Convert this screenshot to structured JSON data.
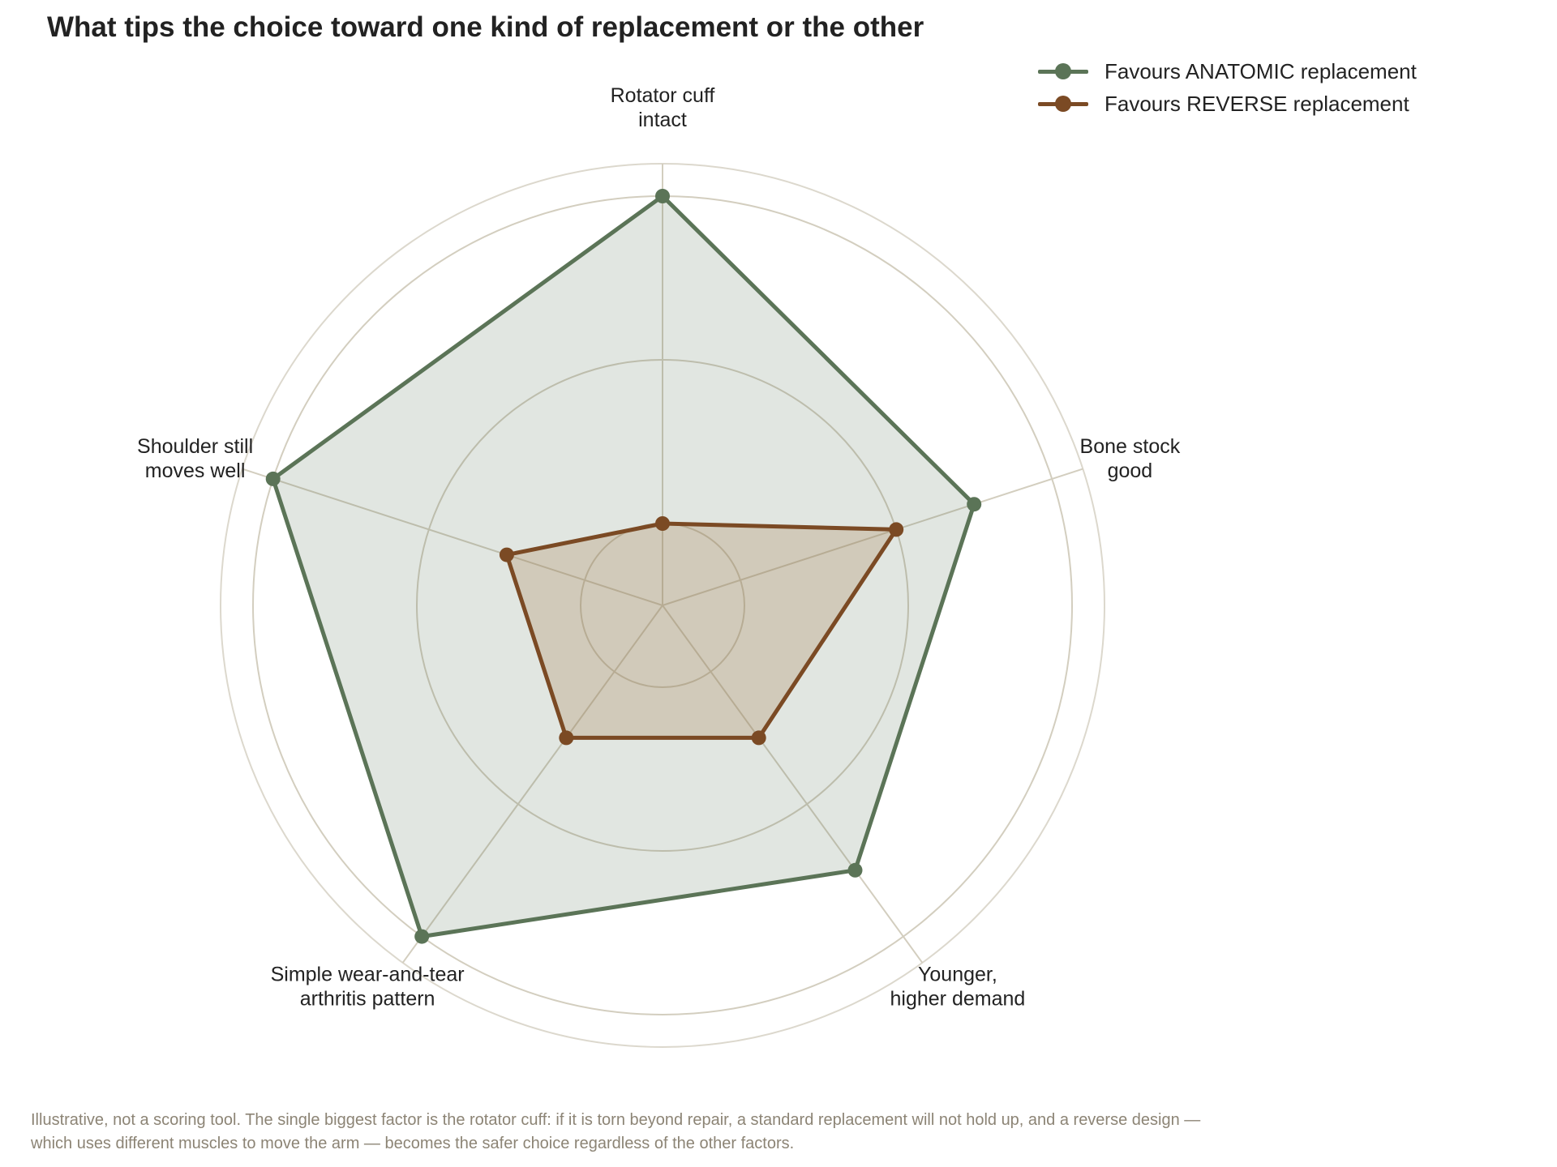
{
  "chart_data": {
    "type": "radar",
    "title": "What tips the choice toward one kind of replacement or the other",
    "axes": [
      [
        "Rotator cuff",
        "intact"
      ],
      [
        "Bone stock",
        "good"
      ],
      [
        "Younger,",
        "higher demand"
      ],
      [
        "Simple wear-and-tear",
        "arthritis pattern"
      ],
      [
        "Shoulder still",
        "moves well"
      ]
    ],
    "rmax": 5,
    "rings": [
      1,
      3,
      5
    ],
    "grid": true,
    "legend_position": "top-right",
    "series": [
      {
        "name": "Favours ANATOMIC replacement",
        "color": "#5b7457",
        "values": [
          5.0,
          4.0,
          4.0,
          5.0,
          5.0
        ]
      },
      {
        "name": "Favours REVERSE replacement",
        "color": "#7b4a24",
        "values": [
          1.0,
          3.0,
          2.0,
          2.0,
          2.0
        ]
      }
    ]
  },
  "footnote": "Illustrative, not a scoring tool. The single biggest factor is the rotator cuff: if it is torn beyond repair, a standard replacement will not hold up, and a reverse design — which uses different muscles to move the arm — becomes the safer choice regardless of the other factors."
}
